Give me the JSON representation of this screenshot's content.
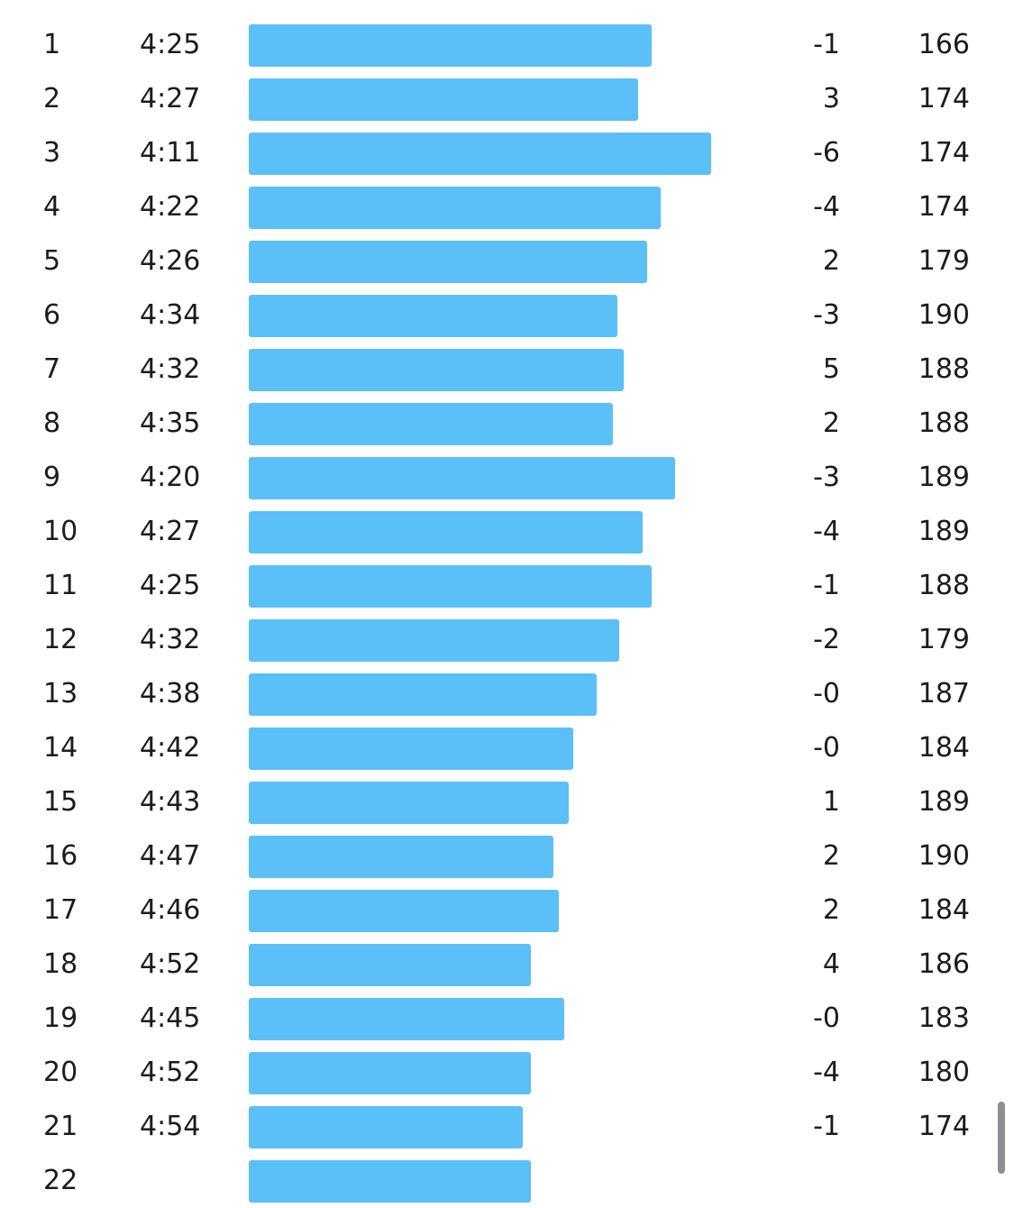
{
  "bar_color": "#5BBFF8",
  "chart_data": {
    "type": "bar",
    "orientation": "horizontal",
    "categories": [
      "1",
      "2",
      "3",
      "4",
      "5",
      "6",
      "7",
      "8",
      "9",
      "10",
      "11",
      "12",
      "13",
      "14",
      "15",
      "16",
      "17",
      "18",
      "19",
      "20",
      "21",
      "22"
    ],
    "pace_labels": [
      "4:25",
      "4:27",
      "4:11",
      "4:22",
      "4:26",
      "4:34",
      "4:32",
      "4:35",
      "4:20",
      "4:27",
      "4:25",
      "4:32",
      "4:38",
      "4:42",
      "4:43",
      "4:47",
      "4:46",
      "4:52",
      "4:45",
      "4:52",
      "4:54",
      ""
    ],
    "elevation": [
      "-1",
      "3",
      "-6",
      "-4",
      "2",
      "-3",
      "5",
      "2",
      "-3",
      "-4",
      "-1",
      "-2",
      "-0",
      "-0",
      "1",
      "2",
      "2",
      "4",
      "-0",
      "-4",
      "-1",
      ""
    ],
    "heart_rate": [
      "166",
      "174",
      "174",
      "174",
      "179",
      "190",
      "188",
      "188",
      "189",
      "189",
      "188",
      "179",
      "187",
      "184",
      "189",
      "190",
      "184",
      "186",
      "183",
      "180",
      "174",
      ""
    ],
    "pace_seconds": [
      265,
      267,
      251,
      262,
      266,
      274,
      272,
      275,
      260,
      267,
      265,
      272,
      278,
      282,
      283,
      287,
      286,
      292,
      285,
      292,
      294,
      292
    ],
    "speed_relative": [
      0.871,
      0.842,
      1.0,
      0.891,
      0.861,
      0.797,
      0.81,
      0.787,
      0.922,
      0.852,
      0.871,
      0.802,
      0.753,
      0.701,
      0.692,
      0.658,
      0.67,
      0.611,
      0.682,
      0.611,
      0.592,
      0.611
    ]
  }
}
